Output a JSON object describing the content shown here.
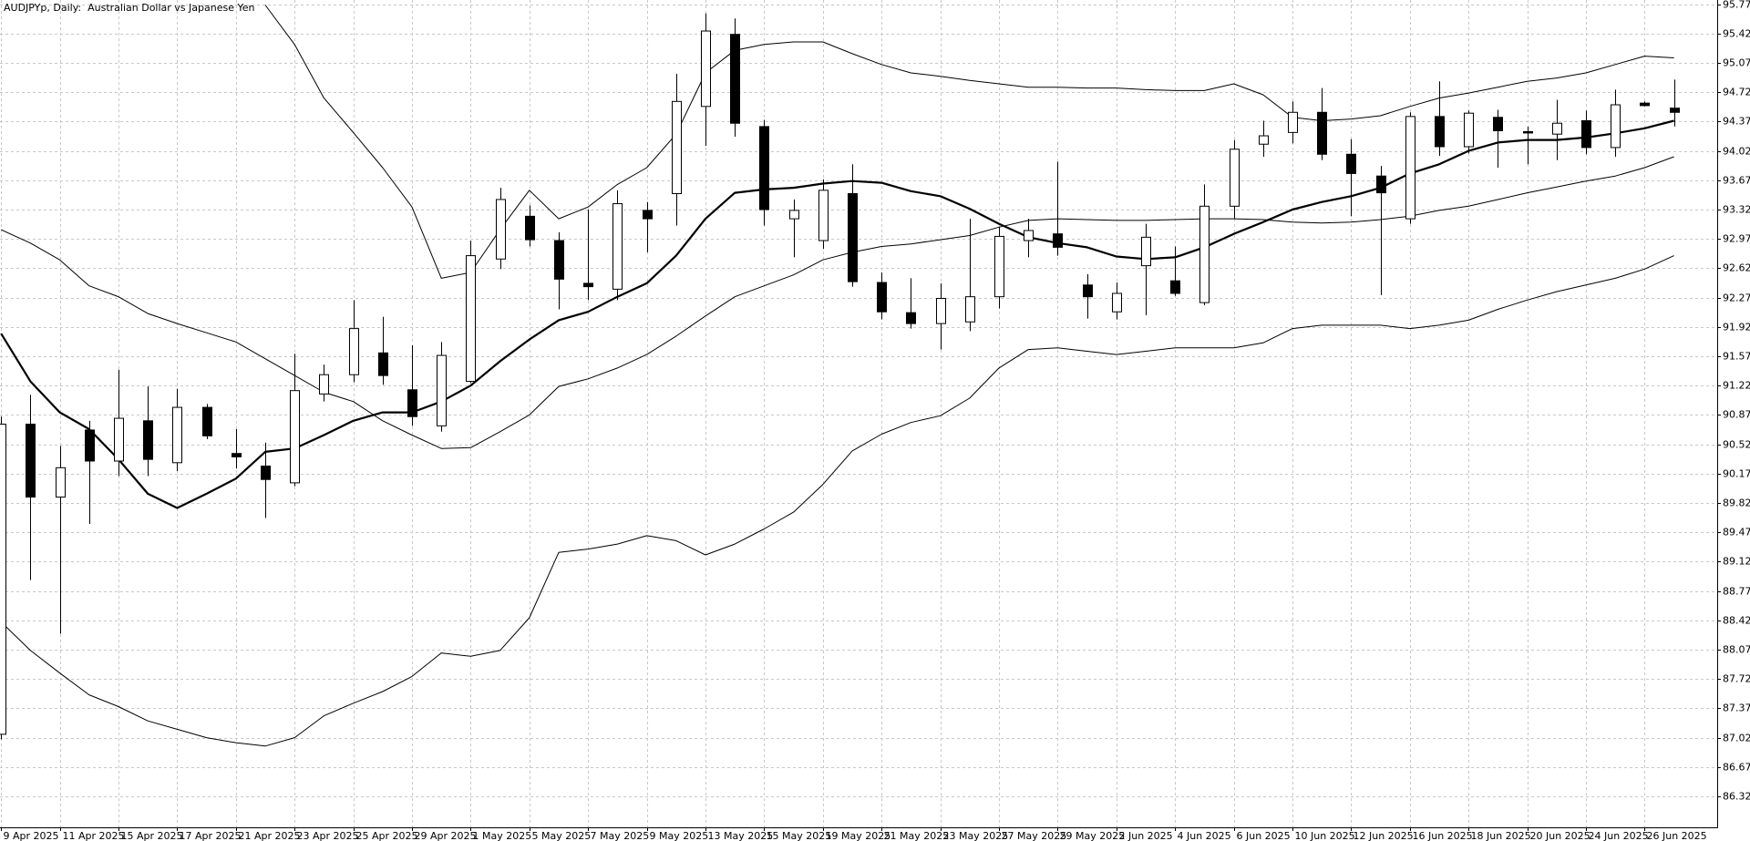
{
  "chart_data": {
    "type": "candlestick",
    "title": "AUDJPYp, Daily:  Australian Dollar vs Japanese Yen",
    "categories": [
      "9 Apr 2025",
      null,
      "11 Apr 2025",
      null,
      "15 Apr 2025",
      null,
      "17 Apr 2025",
      null,
      "21 Apr 2025",
      null,
      "23 Apr 2025",
      null,
      "25 Apr 2025",
      null,
      "29 Apr 2025",
      null,
      "1 May 2025",
      null,
      "5 May 2025",
      null,
      "7 May 2025",
      null,
      "9 May 2025",
      null,
      "13 May 2025",
      null,
      "15 May 2025",
      null,
      "19 May 2025",
      null,
      "21 May 2025",
      null,
      "23 May 2025",
      null,
      "27 May 2025",
      null,
      "29 May 2025",
      null,
      "2 Jun 2025",
      null,
      "4 Jun 2025",
      null,
      "6 Jun 2025",
      null,
      "10 Jun 2025",
      null,
      "12 Jun 2025",
      null,
      "16 Jun 2025",
      null,
      "18 Jun 2025",
      null,
      "20 Jun 2025",
      null,
      "24 Jun 2025",
      null,
      "26 Jun 2025",
      null
    ],
    "open": [
      87.06,
      90.76,
      89.89,
      90.69,
      90.32,
      90.8,
      90.3,
      90.96,
      90.41,
      90.26,
      90.06,
      91.12,
      91.35,
      91.61,
      91.17,
      90.74,
      91.27,
      92.73,
      93.24,
      92.95,
      92.44,
      92.37,
      93.31,
      93.51,
      94.55,
      95.41,
      94.31,
      93.21,
      92.95,
      93.51,
      92.45,
      92.09,
      91.96,
      91.98,
      92.28,
      92.95,
      93.03,
      92.42,
      92.1,
      92.65,
      92.47,
      92.21,
      93.36,
      94.1,
      94.24,
      94.48,
      93.98,
      93.72,
      93.21,
      94.43,
      94.07,
      94.42,
      94.25,
      94.22,
      94.38,
      94.06,
      94.59,
      94.53
    ],
    "high": [
      90.85,
      91.11,
      90.5,
      90.8,
      91.41,
      91.21,
      91.18,
      91.0,
      90.7,
      90.54,
      91.6,
      91.47,
      92.24,
      92.04,
      91.7,
      91.74,
      92.95,
      93.58,
      93.37,
      93.05,
      93.32,
      93.55,
      93.41,
      94.94,
      95.66,
      95.6,
      94.39,
      93.44,
      93.68,
      93.86,
      92.57,
      92.5,
      92.44,
      93.21,
      93.11,
      93.21,
      93.89,
      92.55,
      92.45,
      93.15,
      92.88,
      93.62,
      94.15,
      94.38,
      94.61,
      94.77,
      94.16,
      93.84,
      94.48,
      94.85,
      94.5,
      94.51,
      94.31,
      94.63,
      94.5,
      94.75,
      94.61,
      94.87
    ],
    "low": [
      87.0,
      88.9,
      88.26,
      89.57,
      90.14,
      90.14,
      90.2,
      90.58,
      90.23,
      89.64,
      90.02,
      91.03,
      91.26,
      91.23,
      90.74,
      90.67,
      91.25,
      92.61,
      92.88,
      92.13,
      92.24,
      92.24,
      92.81,
      93.13,
      94.08,
      94.19,
      93.13,
      92.75,
      92.85,
      92.4,
      92.01,
      91.9,
      91.65,
      91.87,
      92.14,
      92.75,
      92.77,
      92.02,
      92.01,
      92.06,
      92.29,
      92.18,
      93.21,
      93.95,
      94.11,
      93.91,
      93.24,
      92.3,
      93.15,
      93.96,
      93.99,
      93.82,
      93.86,
      93.91,
      93.98,
      93.95,
      94.55,
      94.31
    ],
    "close": [
      90.76,
      89.89,
      90.24,
      90.32,
      90.83,
      90.34,
      90.96,
      90.62,
      90.37,
      90.1,
      91.16,
      91.35,
      91.9,
      91.34,
      90.85,
      91.58,
      92.77,
      93.44,
      92.96,
      92.49,
      92.4,
      93.39,
      93.21,
      94.61,
      95.45,
      94.35,
      93.32,
      93.31,
      93.55,
      92.46,
      92.1,
      91.96,
      92.26,
      92.28,
      93.0,
      93.07,
      92.87,
      92.28,
      92.32,
      92.99,
      92.32,
      93.36,
      94.04,
      94.2,
      94.48,
      93.98,
      93.75,
      93.52,
      94.43,
      94.07,
      94.47,
      94.26,
      94.24,
      94.35,
      94.06,
      94.57,
      94.56,
      94.48
    ],
    "up_color": "#ffffff",
    "down_color": "#000000",
    "outline_color": "#000000",
    "overlays": [
      {
        "color": "#000000",
        "width": 2.2,
        "values": [
          91.84,
          91.27,
          90.9,
          90.7,
          90.34,
          89.93,
          89.76,
          89.93,
          90.11,
          90.43,
          90.47,
          90.63,
          90.8,
          90.9,
          90.9,
          91.03,
          91.22,
          91.51,
          91.77,
          92.0,
          92.1,
          92.28,
          92.44,
          92.77,
          93.21,
          93.52,
          93.56,
          93.58,
          93.63,
          93.66,
          93.64,
          93.54,
          93.48,
          93.33,
          93.15,
          92.99,
          92.92,
          92.87,
          92.76,
          92.73,
          92.75,
          92.87,
          93.03,
          93.17,
          93.32,
          93.41,
          93.48,
          93.58,
          93.75,
          93.86,
          94.02,
          94.12,
          94.15,
          94.15,
          94.18,
          94.23,
          94.29,
          94.38
        ]
      },
      {
        "color": "#000000",
        "width": 1,
        "values": [
          null,
          null,
          null,
          null,
          null,
          null,
          null,
          null,
          null,
          95.76,
          95.29,
          94.65,
          94.24,
          93.82,
          93.35,
          92.5,
          92.57,
          93.08,
          93.55,
          93.21,
          93.35,
          93.62,
          93.82,
          94.22,
          94.95,
          95.22,
          95.29,
          95.32,
          95.32,
          95.18,
          95.05,
          94.95,
          94.91,
          94.86,
          94.82,
          94.78,
          94.78,
          94.77,
          94.77,
          94.75,
          94.74,
          94.74,
          94.82,
          94.69,
          94.42,
          94.38,
          94.4,
          94.44,
          94.55,
          94.65,
          94.71,
          94.78,
          94.85,
          94.89,
          94.95,
          95.05,
          95.15,
          95.13
        ]
      },
      {
        "color": "#000000",
        "width": 1,
        "values": [
          93.08,
          92.92,
          92.72,
          92.41,
          92.28,
          92.08,
          91.96,
          91.85,
          91.74,
          91.54,
          91.34,
          91.14,
          91.03,
          90.8,
          90.63,
          90.47,
          90.48,
          90.67,
          90.87,
          91.21,
          91.3,
          91.43,
          91.59,
          91.81,
          92.05,
          92.28,
          92.41,
          92.54,
          92.72,
          92.81,
          92.88,
          92.91,
          92.96,
          93.01,
          93.11,
          93.19,
          93.21,
          93.2,
          93.19,
          93.19,
          93.2,
          93.21,
          93.21,
          93.2,
          93.17,
          93.16,
          93.17,
          93.2,
          93.24,
          93.31,
          93.36,
          93.44,
          93.52,
          93.59,
          93.66,
          93.72,
          93.82,
          93.95
        ]
      },
      {
        "color": "#000000",
        "width": 1,
        "values": [
          88.4,
          88.06,
          87.79,
          87.53,
          87.39,
          87.22,
          87.12,
          87.02,
          86.96,
          86.92,
          87.02,
          87.28,
          87.43,
          87.57,
          87.75,
          88.03,
          87.99,
          88.06,
          88.45,
          89.23,
          89.27,
          89.33,
          89.43,
          89.37,
          89.2,
          89.33,
          89.51,
          89.71,
          90.04,
          90.44,
          90.64,
          90.78,
          90.86,
          91.07,
          91.43,
          91.65,
          91.67,
          91.63,
          91.59,
          91.63,
          91.67,
          91.67,
          91.67,
          91.73,
          91.9,
          91.94,
          91.94,
          91.94,
          91.9,
          91.94,
          92.0,
          92.13,
          92.24,
          92.34,
          92.42,
          92.5,
          92.61,
          92.77
        ]
      }
    ],
    "ylim": [
      85.95,
      95.82
    ],
    "yticks": [
      {
        "value": 95.77,
        "label": "95.770"
      },
      {
        "value": 95.42,
        "label": "95.420"
      },
      {
        "value": 95.07,
        "label": "95.070"
      },
      {
        "value": 94.72,
        "label": "94.720"
      },
      {
        "value": 94.37,
        "label": "94.370"
      },
      {
        "value": 94.02,
        "label": "94.020"
      },
      {
        "value": 93.67,
        "label": "93.670"
      },
      {
        "value": 93.32,
        "label": "93.320"
      },
      {
        "value": 92.97,
        "label": "92.970"
      },
      {
        "value": 92.62,
        "label": "92.620"
      },
      {
        "value": 92.27,
        "label": "92.270"
      },
      {
        "value": 91.92,
        "label": "91.920"
      },
      {
        "value": 91.57,
        "label": "91.570"
      },
      {
        "value": 91.22,
        "label": "91.220"
      },
      {
        "value": 90.87,
        "label": "90.870"
      },
      {
        "value": 90.52,
        "label": "90.520"
      },
      {
        "value": 90.17,
        "label": "90.170"
      },
      {
        "value": 89.82,
        "label": "89.820"
      },
      {
        "value": 89.47,
        "label": "89.470"
      },
      {
        "value": 89.12,
        "label": "89.120"
      },
      {
        "value": 88.77,
        "label": "88.770"
      },
      {
        "value": 88.42,
        "label": "88.420"
      },
      {
        "value": 88.07,
        "label": "88.070"
      },
      {
        "value": 87.72,
        "label": "87.720"
      },
      {
        "value": 87.37,
        "label": "87.370"
      },
      {
        "value": 87.02,
        "label": "87.020"
      },
      {
        "value": 86.67,
        "label": "86.670"
      },
      {
        "value": 86.32,
        "label": "86.320"
      }
    ],
    "grid": true
  }
}
